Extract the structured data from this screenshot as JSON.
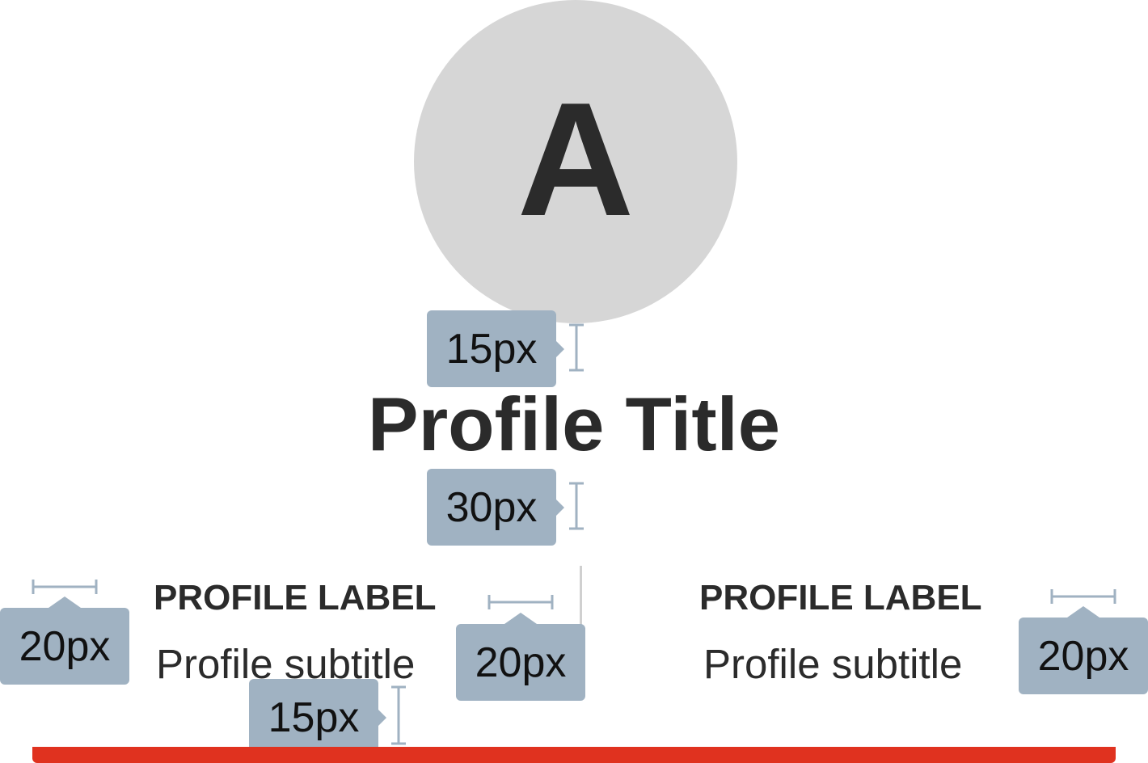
{
  "avatar": {
    "initial": "A"
  },
  "title": "Profile Title",
  "columns": [
    {
      "label": "PROFILE LABEL",
      "subtitle": "Profile subtitle"
    },
    {
      "label": "PROFILE LABEL",
      "subtitle": "Profile subtitle"
    }
  ],
  "annotations": {
    "avatar_title_gap": "15px",
    "title_columns_gap": "30px",
    "left_padding": "20px",
    "column_gap": "20px",
    "right_padding": "20px",
    "bottom_padding": "15px"
  },
  "colors": {
    "avatar_bg": "#d6d6d6",
    "text": "#2b2b2b",
    "annotation_badge": "#a0b2c2",
    "accent_bar": "#e0321f"
  }
}
